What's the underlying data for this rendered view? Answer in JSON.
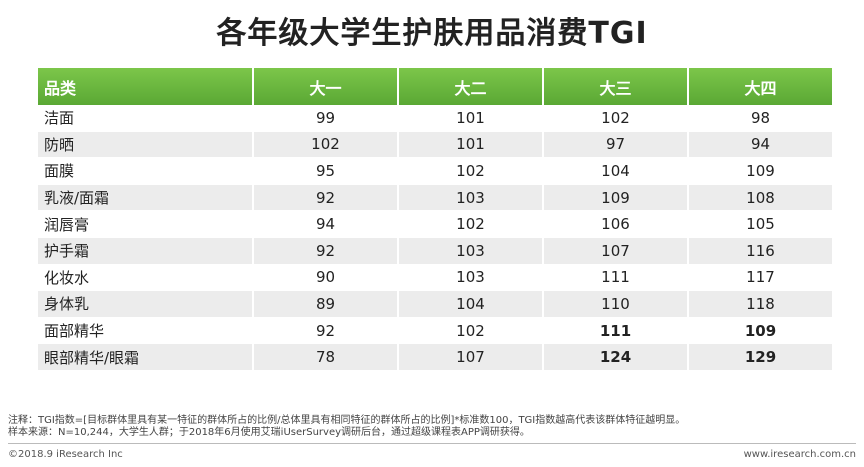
{
  "chart_data": {
    "type": "table",
    "title": "各年级大学生护肤用品消费TGI",
    "columns": [
      "品类",
      "大一",
      "大二",
      "大三",
      "大四"
    ],
    "rows": [
      {
        "category": "洁面",
        "values": [
          99,
          101,
          102,
          98
        ],
        "bold": [
          false,
          false,
          false,
          false
        ]
      },
      {
        "category": "防晒",
        "values": [
          102,
          101,
          97,
          94
        ],
        "bold": [
          false,
          false,
          false,
          false
        ]
      },
      {
        "category": "面膜",
        "values": [
          95,
          102,
          104,
          109
        ],
        "bold": [
          false,
          false,
          false,
          false
        ]
      },
      {
        "category": "乳液/面霜",
        "values": [
          92,
          103,
          109,
          108
        ],
        "bold": [
          false,
          false,
          false,
          false
        ]
      },
      {
        "category": "润唇膏",
        "values": [
          94,
          102,
          106,
          105
        ],
        "bold": [
          false,
          false,
          false,
          false
        ]
      },
      {
        "category": "护手霜",
        "values": [
          92,
          103,
          107,
          116
        ],
        "bold": [
          false,
          false,
          false,
          false
        ]
      },
      {
        "category": "化妆水",
        "values": [
          90,
          103,
          111,
          117
        ],
        "bold": [
          false,
          false,
          false,
          false
        ]
      },
      {
        "category": "身体乳",
        "values": [
          89,
          104,
          110,
          118
        ],
        "bold": [
          false,
          false,
          false,
          false
        ]
      },
      {
        "category": "面部精华",
        "values": [
          92,
          102,
          111,
          109
        ],
        "bold": [
          false,
          false,
          true,
          true
        ]
      },
      {
        "category": "眼部精华/眼霜",
        "values": [
          78,
          107,
          124,
          129
        ],
        "bold": [
          false,
          false,
          true,
          true
        ]
      }
    ]
  },
  "notes": {
    "line1": "注释：TGI指数=[目标群体里具有某一特征的群体所占的比例/总体里具有相同特征的群体所占的比例]*标准数100，TGI指数越高代表该群体特征越明显。",
    "line2": "样本来源：N=10,244，大学生人群；于2018年6月使用艾瑞iUserSurvey调研后台，通过超级课程表APP调研获得。"
  },
  "footer": {
    "copyright": "©2018.9 iResearch Inc",
    "website": "www.iresearch.com.cn"
  },
  "colors": {
    "header_green": "#6bb83e",
    "row_alt": "#ececec"
  }
}
